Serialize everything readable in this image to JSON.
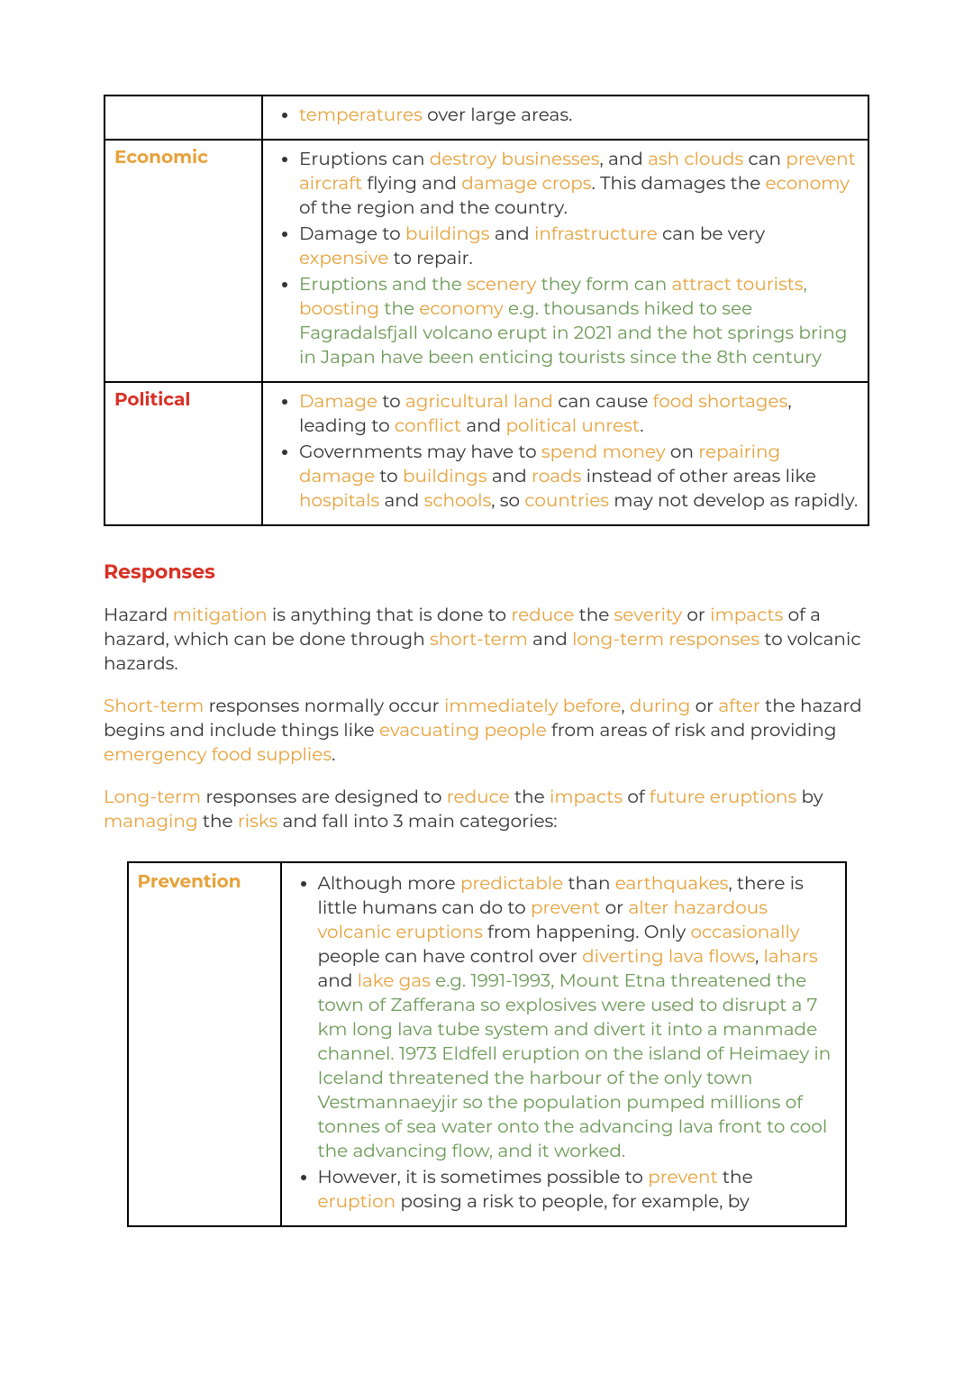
{
  "colors": {
    "orange": "#e6a23c",
    "red": "#d93025",
    "green": "#6a9955",
    "text": "#333333",
    "border": "#000000",
    "background": "#ffffff"
  },
  "typography": {
    "body_fontsize_pt": 15,
    "heading_fontsize_pt": 16,
    "body_weight": 400,
    "bold_weight": 700,
    "family": "Montserrat / sans-serif"
  },
  "table1": {
    "rows": [
      {
        "label": "",
        "label_color": "",
        "items": [
          [
            {
              "t": "temperatures",
              "c": "orange"
            },
            {
              "t": " over large areas."
            }
          ]
        ]
      },
      {
        "label": "Economic",
        "label_color": "orange",
        "items": [
          [
            {
              "t": "Eruptions can "
            },
            {
              "t": "destroy businesses",
              "c": "orange"
            },
            {
              "t": ", and "
            },
            {
              "t": "ash clouds",
              "c": "orange"
            },
            {
              "t": " can "
            },
            {
              "t": "prevent aircraft",
              "c": "orange"
            },
            {
              "t": " flying and "
            },
            {
              "t": "damage crops",
              "c": "orange"
            },
            {
              "t": ". This damages the "
            },
            {
              "t": "economy",
              "c": "orange"
            },
            {
              "t": " of the region and the country."
            }
          ],
          [
            {
              "t": "Damage to "
            },
            {
              "t": "buildings",
              "c": "orange"
            },
            {
              "t": " and "
            },
            {
              "t": "infrastructure",
              "c": "orange"
            },
            {
              "t": " can be very "
            },
            {
              "t": "expensive",
              "c": "orange"
            },
            {
              "t": " to repair."
            }
          ],
          [
            {
              "t": "Eruptions",
              "c": "green"
            },
            {
              "t": " and the ",
              "c": "green"
            },
            {
              "t": "scenery",
              "c": "orange"
            },
            {
              "t": " they form can ",
              "c": "green"
            },
            {
              "t": "attract tourists",
              "c": "orange"
            },
            {
              "t": ", ",
              "c": "green"
            },
            {
              "t": "boosting",
              "c": "orange"
            },
            {
              "t": " the ",
              "c": "green"
            },
            {
              "t": "economy",
              "c": "orange"
            },
            {
              "t": " e.g. thousands hiked to see Fagradalsfjall volcano erupt in 2021 and the hot springs bring in Japan have been enticing tourists since the 8th century",
              "c": "green"
            }
          ]
        ]
      },
      {
        "label": "Political",
        "label_color": "red",
        "items": [
          [
            {
              "t": "Damage",
              "c": "orange"
            },
            {
              "t": " to "
            },
            {
              "t": "agricultural land",
              "c": "orange"
            },
            {
              "t": " can cause "
            },
            {
              "t": "food shortages",
              "c": "orange"
            },
            {
              "t": ", leading to "
            },
            {
              "t": "conflict",
              "c": "orange"
            },
            {
              "t": " and "
            },
            {
              "t": "political unrest",
              "c": "orange"
            },
            {
              "t": "."
            }
          ],
          [
            {
              "t": "Governments may have to "
            },
            {
              "t": "spend money",
              "c": "orange"
            },
            {
              "t": " on "
            },
            {
              "t": "repairing damage",
              "c": "orange"
            },
            {
              "t": " to "
            },
            {
              "t": "buildings",
              "c": "orange"
            },
            {
              "t": " and "
            },
            {
              "t": "roads",
              "c": "orange"
            },
            {
              "t": " instead of other areas like "
            },
            {
              "t": "hospitals",
              "c": "orange"
            },
            {
              "t": " and "
            },
            {
              "t": "schools",
              "c": "orange"
            },
            {
              "t": ", so "
            },
            {
              "t": "countries",
              "c": "orange"
            },
            {
              "t": " may not develop as rapidly."
            }
          ]
        ]
      }
    ]
  },
  "heading": {
    "text": "Responses",
    "color": "red"
  },
  "paragraphs": [
    [
      {
        "t": "Hazard "
      },
      {
        "t": "mitigation",
        "c": "orange"
      },
      {
        "t": " is anything that is done to "
      },
      {
        "t": "reduce",
        "c": "orange"
      },
      {
        "t": " the "
      },
      {
        "t": "severity",
        "c": "orange"
      },
      {
        "t": " or "
      },
      {
        "t": "impacts",
        "c": "orange"
      },
      {
        "t": " of a hazard, which can be done through "
      },
      {
        "t": "short-term",
        "c": "orange"
      },
      {
        "t": " and "
      },
      {
        "t": "long-term responses",
        "c": "orange"
      },
      {
        "t": " to volcanic hazards."
      }
    ],
    [
      {
        "t": "Short-term",
        "c": "orange"
      },
      {
        "t": " responses normally occur "
      },
      {
        "t": "immediately before",
        "c": "orange"
      },
      {
        "t": ", "
      },
      {
        "t": "during",
        "c": "orange"
      },
      {
        "t": " or "
      },
      {
        "t": "after",
        "c": "orange"
      },
      {
        "t": " the hazard begins and include things like "
      },
      {
        "t": "evacuating people",
        "c": "orange"
      },
      {
        "t": " from areas of risk and providing "
      },
      {
        "t": "emergency food supplies",
        "c": "orange"
      },
      {
        "t": "."
      }
    ],
    [
      {
        "t": "Long-term",
        "c": "orange"
      },
      {
        "t": " responses are designed to "
      },
      {
        "t": "reduce",
        "c": "orange"
      },
      {
        "t": " the "
      },
      {
        "t": "impacts",
        "c": "orange"
      },
      {
        "t": " of "
      },
      {
        "t": "future eruptions",
        "c": "orange"
      },
      {
        "t": " by "
      },
      {
        "t": "managing",
        "c": "orange"
      },
      {
        "t": " the "
      },
      {
        "t": "risks",
        "c": "orange"
      },
      {
        "t": " and fall into 3 main categories:"
      }
    ]
  ],
  "table2": {
    "rows": [
      {
        "label": "Prevention",
        "label_color": "orange",
        "items": [
          [
            {
              "t": "Although more "
            },
            {
              "t": "predictable",
              "c": "orange"
            },
            {
              "t": " than "
            },
            {
              "t": "earthquakes",
              "c": "orange"
            },
            {
              "t": ", there is little humans can do to "
            },
            {
              "t": "prevent",
              "c": "orange"
            },
            {
              "t": " or "
            },
            {
              "t": "alter hazardous volcanic eruptions",
              "c": "orange"
            },
            {
              "t": " from happening. Only "
            },
            {
              "t": "occasionally",
              "c": "orange"
            },
            {
              "t": " people can have control over "
            },
            {
              "t": "diverting lava flows",
              "c": "orange"
            },
            {
              "t": ", "
            },
            {
              "t": "lahars",
              "c": "orange"
            },
            {
              "t": " and "
            },
            {
              "t": "lake gas",
              "c": "orange"
            },
            {
              "t": " e.g. 1991-1993, Mount Etna threatened the town of Zafferana so explosives were used to disrupt a 7 km long lava tube system and divert it into a manmade channel. 1973 Eldfell eruption on the island of Heimaey in Iceland threatened the harbour of the only town Vestmannaeyjir so the population pumped millions of tonnes of sea water onto the advancing lava front to cool the advancing flow, and it worked.",
              "c": "green"
            }
          ],
          [
            {
              "t": "However, it is sometimes possible to "
            },
            {
              "t": "prevent",
              "c": "orange"
            },
            {
              "t": " the "
            },
            {
              "t": "eruption",
              "c": "orange"
            },
            {
              "t": " posing a risk to people, for example, by"
            }
          ]
        ]
      }
    ]
  }
}
